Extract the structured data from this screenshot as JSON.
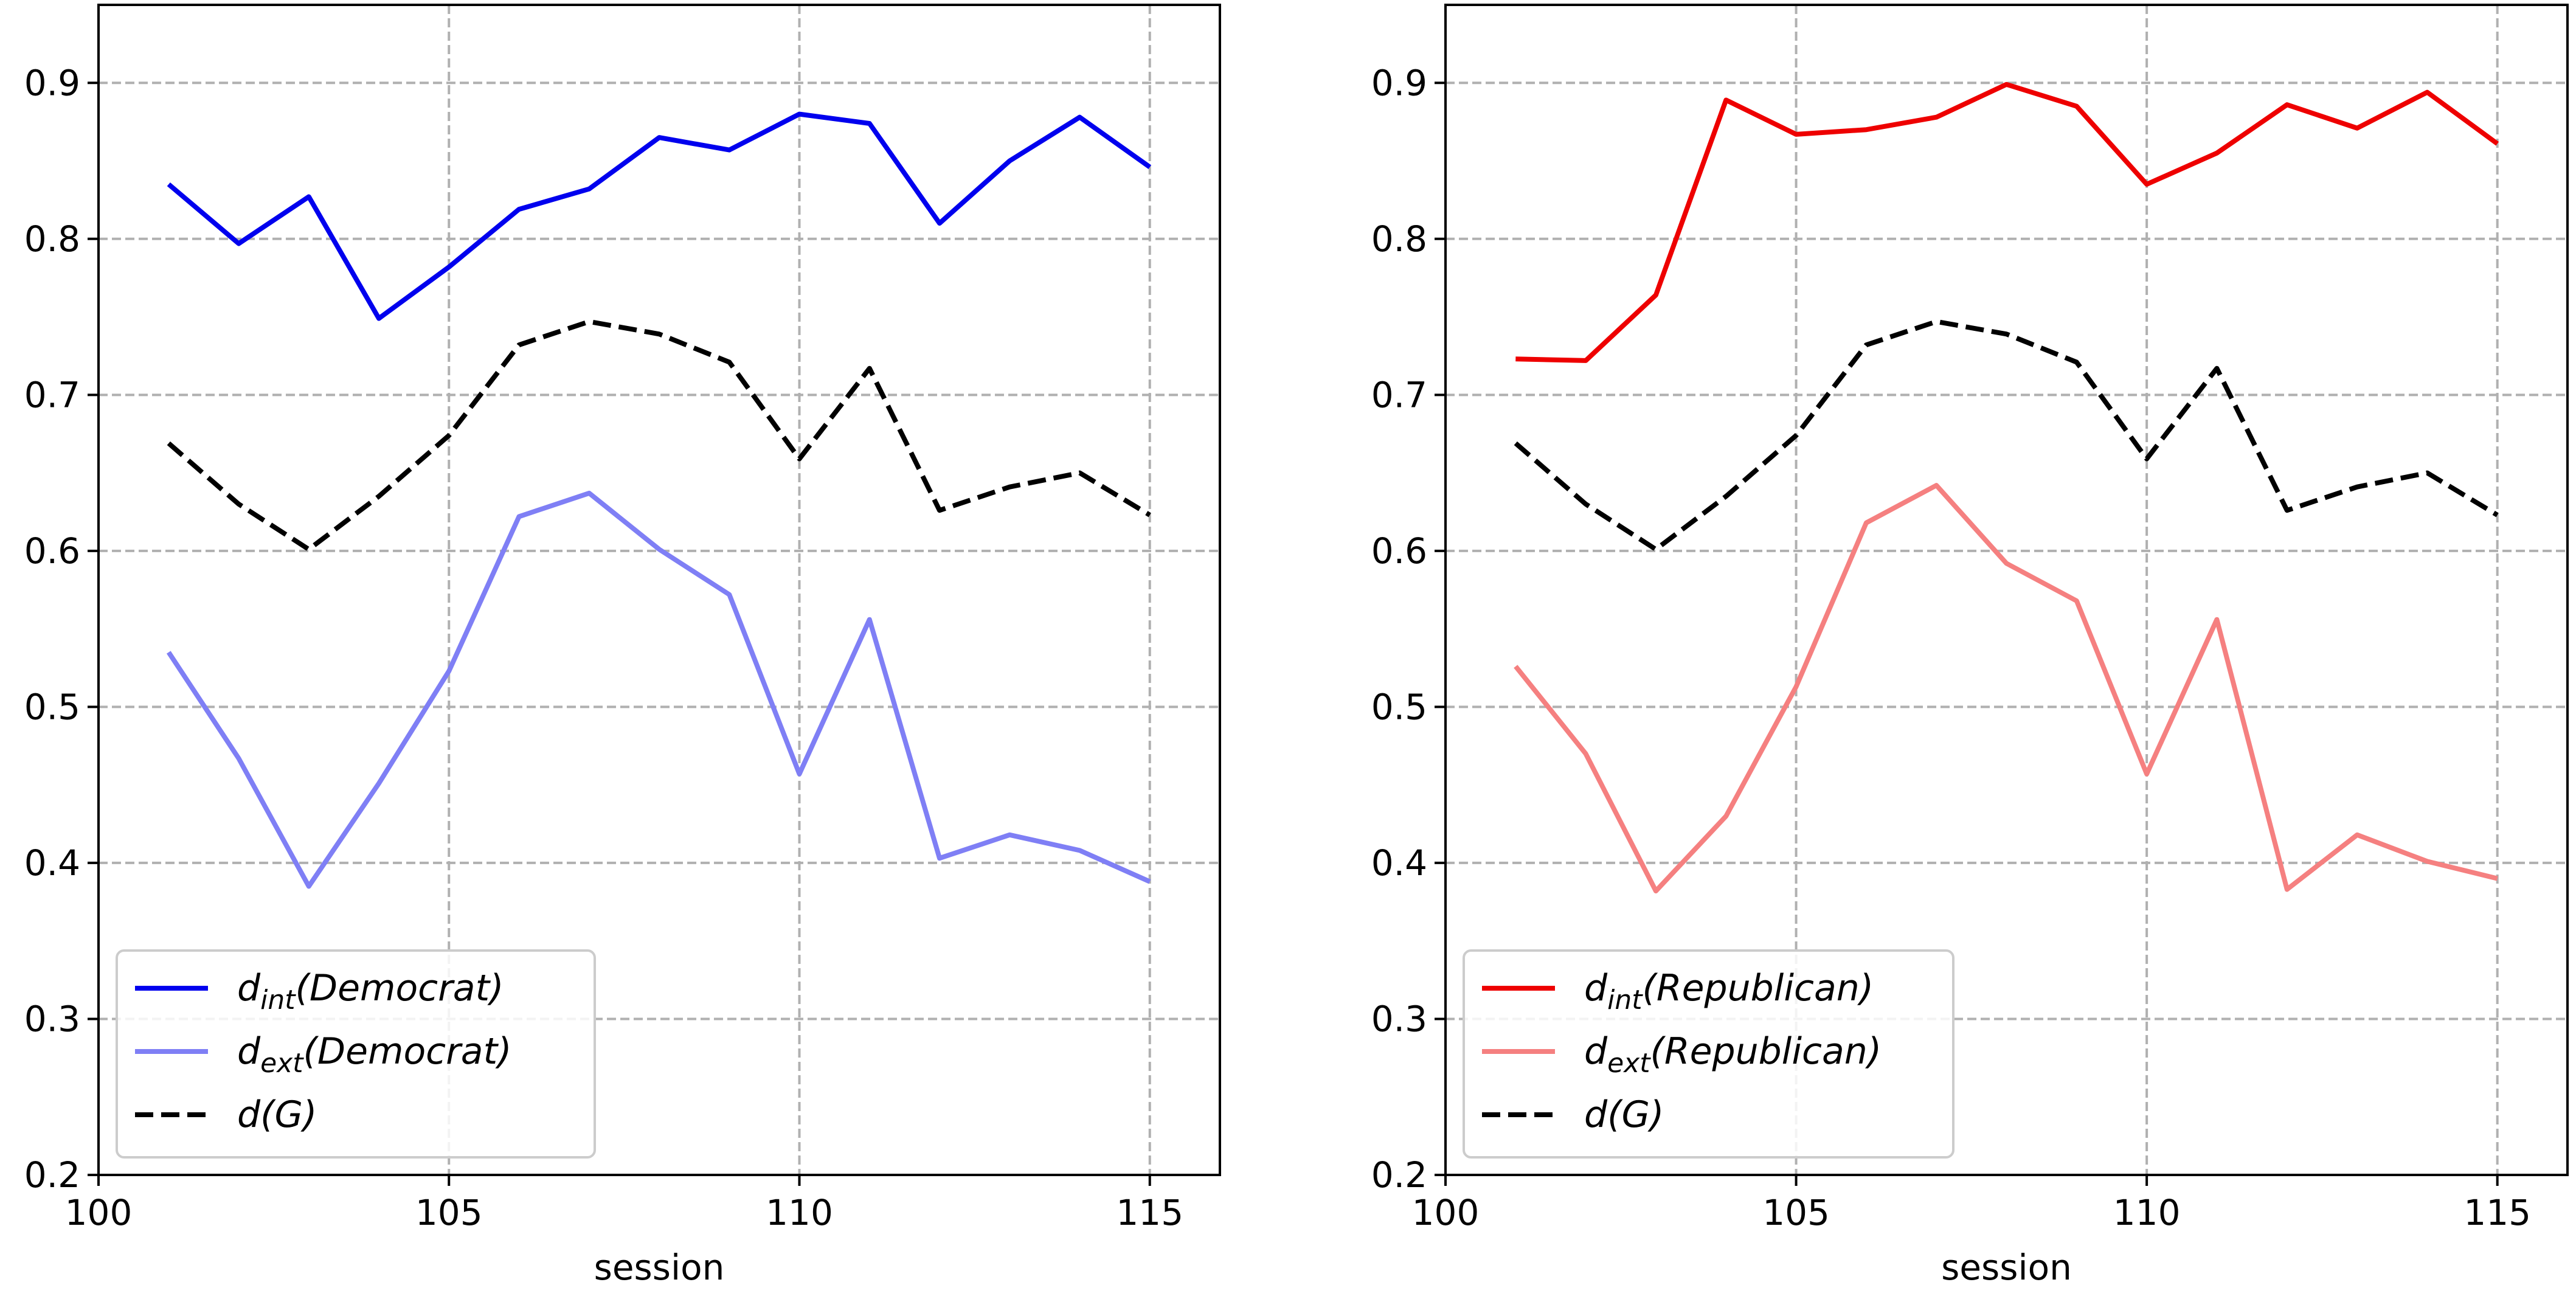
{
  "chart_data": [
    {
      "type": "line",
      "xlabel": "session",
      "ylabel": "",
      "title": "",
      "xlim": [
        100,
        116
      ],
      "ylim": [
        0.2,
        0.95
      ],
      "xticks": [
        "100",
        "105",
        "110",
        "115"
      ],
      "yticks": [
        "0.2",
        "0.3",
        "0.4",
        "0.5",
        "0.6",
        "0.7",
        "0.8",
        "0.9"
      ],
      "grid": true,
      "legend_position": "lower-left",
      "x": [
        101,
        102,
        103,
        104,
        105,
        106,
        107,
        108,
        109,
        110,
        111,
        112,
        113,
        114,
        115
      ],
      "series": [
        {
          "name": "d_int(Democrat)",
          "legend": {
            "base": "d",
            "sub": "int",
            "rest": "(Democrat)"
          },
          "color": "#0000ee",
          "dash": "solid",
          "values": [
            0.835,
            0.797,
            0.827,
            0.749,
            0.782,
            0.819,
            0.832,
            0.865,
            0.857,
            0.88,
            0.874,
            0.81,
            0.85,
            0.878,
            0.846
          ]
        },
        {
          "name": "d_ext(Democrat)",
          "legend": {
            "base": "d",
            "sub": "ext",
            "rest": "(Democrat)"
          },
          "color": "#7f7ff5",
          "dash": "solid",
          "values": [
            0.535,
            0.467,
            0.385,
            0.451,
            0.523,
            0.622,
            0.637,
            0.601,
            0.572,
            0.457,
            0.556,
            0.403,
            0.418,
            0.408,
            0.388
          ]
        },
        {
          "name": "d(G)",
          "legend": {
            "base": "d",
            "sub": "",
            "rest": "(G)"
          },
          "color": "#000000",
          "dash": "dashed",
          "values": [
            0.669,
            0.63,
            0.601,
            0.635,
            0.674,
            0.732,
            0.747,
            0.739,
            0.721,
            0.659,
            0.717,
            0.626,
            0.641,
            0.65,
            0.623
          ]
        }
      ]
    },
    {
      "type": "line",
      "xlabel": "session",
      "ylabel": "",
      "title": "",
      "xlim": [
        100,
        116
      ],
      "ylim": [
        0.2,
        0.95
      ],
      "xticks": [
        "100",
        "105",
        "110",
        "115"
      ],
      "yticks": [
        "0.2",
        "0.3",
        "0.4",
        "0.5",
        "0.6",
        "0.7",
        "0.8",
        "0.9"
      ],
      "grid": true,
      "legend_position": "lower-left",
      "x": [
        101,
        102,
        103,
        104,
        105,
        106,
        107,
        108,
        109,
        110,
        111,
        112,
        113,
        114,
        115
      ],
      "series": [
        {
          "name": "d_int(Republican)",
          "legend": {
            "base": "d",
            "sub": "int",
            "rest": "(Republican)"
          },
          "color": "#ee0000",
          "dash": "solid",
          "values": [
            0.723,
            0.722,
            0.764,
            0.889,
            0.867,
            0.87,
            0.878,
            0.899,
            0.885,
            0.835,
            0.855,
            0.886,
            0.871,
            0.894,
            0.861
          ]
        },
        {
          "name": "d_ext(Republican)",
          "legend": {
            "base": "d",
            "sub": "ext",
            "rest": "(Republican)"
          },
          "color": "#f58080",
          "dash": "solid",
          "values": [
            0.526,
            0.47,
            0.382,
            0.43,
            0.513,
            0.618,
            0.642,
            0.592,
            0.568,
            0.457,
            0.556,
            0.383,
            0.418,
            0.401,
            0.39
          ]
        },
        {
          "name": "d(G)",
          "legend": {
            "base": "d",
            "sub": "",
            "rest": "(G)"
          },
          "color": "#000000",
          "dash": "dashed",
          "values": [
            0.669,
            0.63,
            0.601,
            0.635,
            0.674,
            0.732,
            0.747,
            0.739,
            0.721,
            0.659,
            0.717,
            0.626,
            0.641,
            0.65,
            0.623
          ]
        }
      ]
    }
  ]
}
